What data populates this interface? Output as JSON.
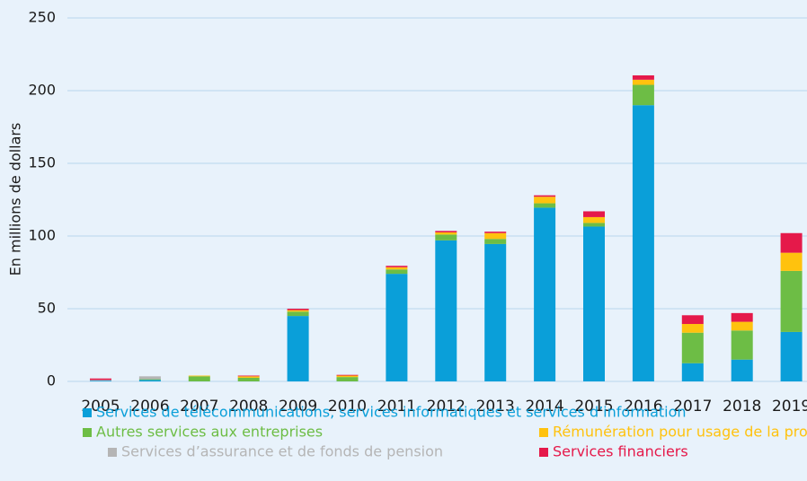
{
  "chart_data": {
    "type": "stacked_bar",
    "ylabel": "En millions de dollars",
    "categories": [
      "2005",
      "2006",
      "2007",
      "2008",
      "2009",
      "2010",
      "2011",
      "2012",
      "2013",
      "2014",
      "2015",
      "2016",
      "2017",
      "2018",
      "2019"
    ],
    "series": [
      {
        "name": "Services de télécommunications, services informatiques et services d’information",
        "color": "#0a9fd9",
        "values": [
          0.5,
          1,
          0,
          0,
          45,
          0,
          74,
          97,
          94.5,
          119.5,
          106.5,
          190,
          12.5,
          15,
          34
        ]
      },
      {
        "name": "Autres services aux entreprises",
        "color": "#6dbd45",
        "values": [
          0,
          0.5,
          3.5,
          2.5,
          3,
          3,
          3,
          4,
          3.5,
          3,
          2.5,
          14,
          21,
          20,
          42
        ]
      },
      {
        "name": "Services d’assurance et de fonds de pension",
        "color": "#b5b5b5",
        "values": [
          0.5,
          2,
          0,
          0,
          0,
          0,
          0,
          0,
          0,
          0,
          0,
          0,
          0,
          0,
          0
        ]
      },
      {
        "name": "Rémunération pour usage de la propriété intellectuelle",
        "color": "#ffc20e",
        "values": [
          0,
          0,
          0.5,
          1,
          1,
          1,
          1.5,
          1.5,
          4,
          4.5,
          4,
          3.5,
          6,
          6,
          12.5
        ]
      },
      {
        "name": "Services financiers",
        "color": "#e5194a",
        "values": [
          1,
          0,
          0,
          0.5,
          1,
          0.5,
          1,
          1,
          1,
          1,
          4,
          3,
          6,
          6,
          13.5
        ]
      }
    ],
    "ylim": [
      0,
      250
    ],
    "yticks": [
      0,
      50,
      100,
      150,
      200,
      250
    ],
    "grid": true
  }
}
